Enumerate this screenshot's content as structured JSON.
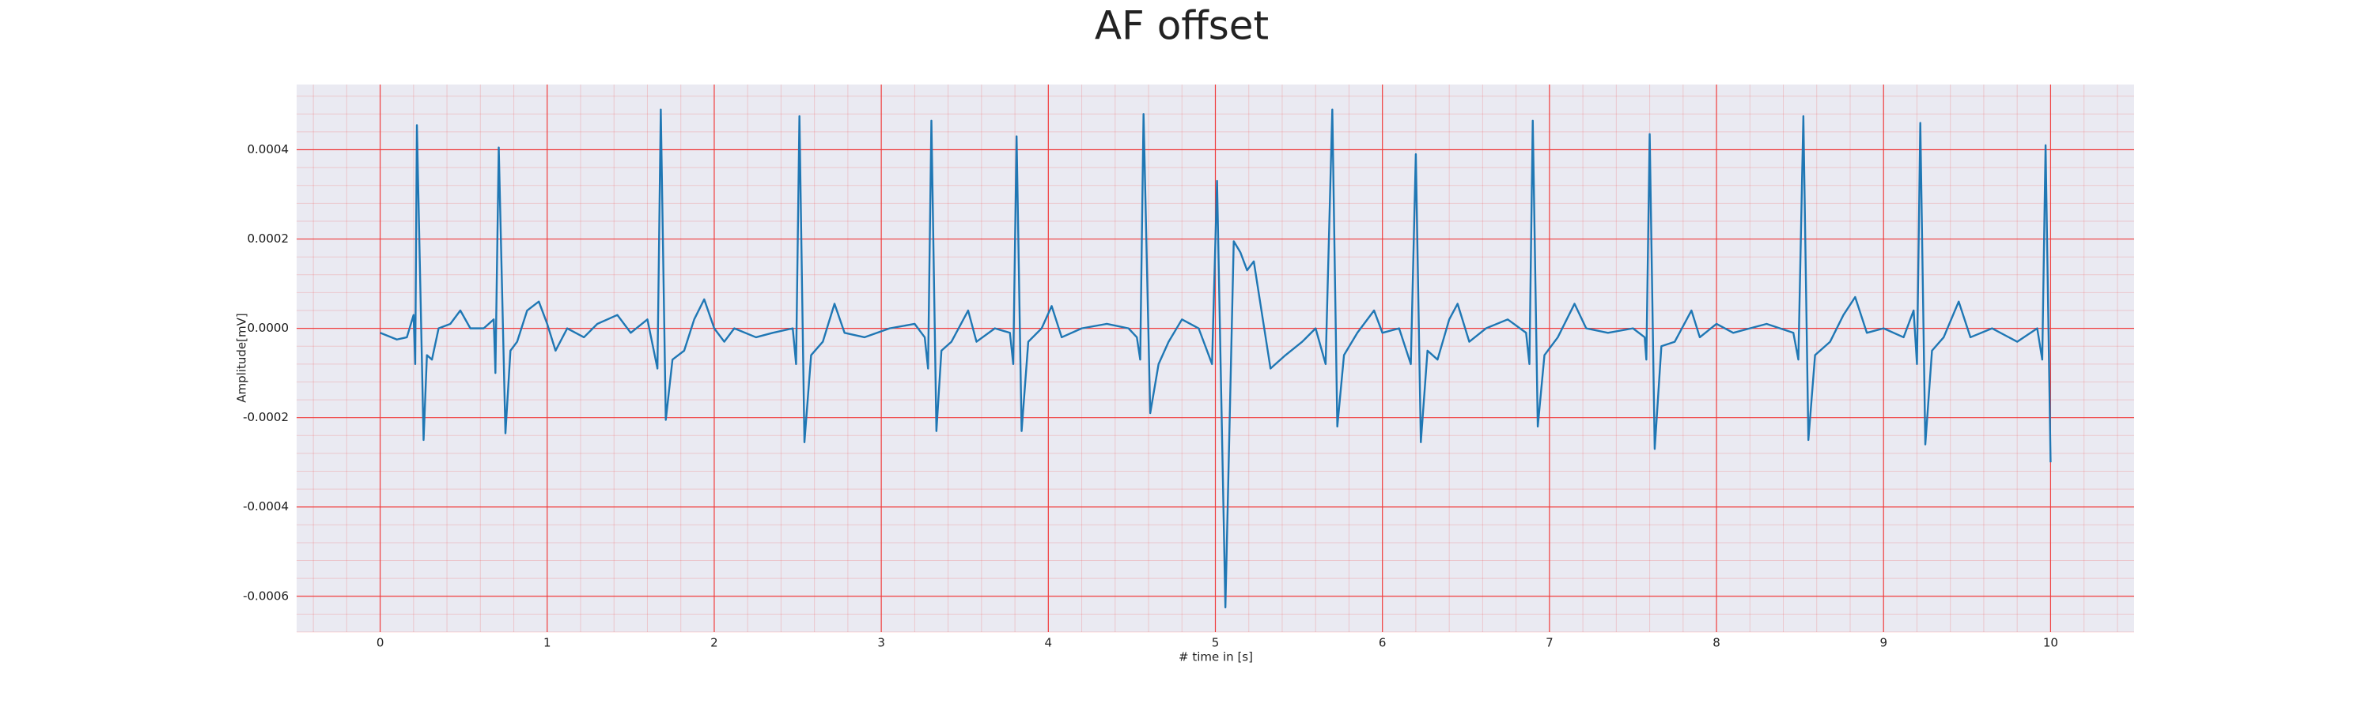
{
  "chart_data": {
    "type": "line",
    "title": "AF offset",
    "xlabel": "# time in [s]",
    "ylabel": "Amplitude[mV]",
    "xlim": [
      -0.5,
      10.5
    ],
    "xticks": [
      0,
      1,
      2,
      3,
      4,
      5,
      6,
      7,
      8,
      9,
      10
    ],
    "ylim": [
      -0.00068,
      0.000546
    ],
    "yticks": [
      -0.0006,
      -0.0004,
      -0.0002,
      {
        "value": 0,
        "label": "0.0000"
      },
      0.0002,
      0.0004
    ],
    "grid": true,
    "grid_color": "#f03c3c",
    "minor_grid": true,
    "background": "#eaeaf2",
    "series": [
      {
        "color": "#1f77b4",
        "x": [
          0,
          0.1,
          0.16,
          0.2,
          0.21,
          0.22,
          0.26,
          0.28,
          0.31,
          0.35,
          0.42,
          0.48,
          0.54,
          0.62,
          0.68,
          0.69,
          0.71,
          0.75,
          0.78,
          0.82,
          0.88,
          0.95,
          1.0,
          1.05,
          1.12,
          1.22,
          1.3,
          1.42,
          1.5,
          1.6,
          1.66,
          1.68,
          1.71,
          1.75,
          1.82,
          1.88,
          1.94,
          2.0,
          2.06,
          2.12,
          2.25,
          2.35,
          2.47,
          2.49,
          2.51,
          2.54,
          2.58,
          2.65,
          2.72,
          2.78,
          2.9,
          3.05,
          3.2,
          3.26,
          3.28,
          3.3,
          3.33,
          3.36,
          3.42,
          3.52,
          3.57,
          3.68,
          3.77,
          3.79,
          3.81,
          3.84,
          3.88,
          3.96,
          4.02,
          4.08,
          4.2,
          4.35,
          4.48,
          4.53,
          4.55,
          4.57,
          4.61,
          4.66,
          4.72,
          4.8,
          4.9,
          4.98,
          5.01,
          5.06,
          5.11,
          5.15,
          5.19,
          5.23,
          5.33,
          5.42,
          5.52,
          5.6,
          5.66,
          5.7,
          5.73,
          5.77,
          5.85,
          5.95,
          6.0,
          6.1,
          6.17,
          6.2,
          6.23,
          6.27,
          6.33,
          6.4,
          6.45,
          6.52,
          6.62,
          6.75,
          6.86,
          6.88,
          6.9,
          6.93,
          6.97,
          7.05,
          7.15,
          7.22,
          7.35,
          7.5,
          7.57,
          7.58,
          7.6,
          7.63,
          7.67,
          7.75,
          7.85,
          7.9,
          8.0,
          8.1,
          8.2,
          8.3,
          8.46,
          8.49,
          8.52,
          8.55,
          8.59,
          8.68,
          8.76,
          8.83,
          8.9,
          9.0,
          9.12,
          9.18,
          9.2,
          9.22,
          9.25,
          9.29,
          9.36,
          9.45,
          9.52,
          9.65,
          9.8,
          9.92,
          9.95,
          9.97,
          10.0
        ],
        "values": [
          -1e-05,
          -2.5e-05,
          -2e-05,
          3e-05,
          -8e-05,
          0.000455,
          -0.00025,
          -6e-05,
          -7e-05,
          0,
          1e-05,
          4e-05,
          0,
          0,
          2e-05,
          -0.0001,
          0.000405,
          -0.000235,
          -5e-05,
          -3e-05,
          4e-05,
          6e-05,
          1e-05,
          -5e-05,
          0,
          -2e-05,
          1e-05,
          3e-05,
          -1e-05,
          2e-05,
          -9e-05,
          0.00049,
          -0.000205,
          -7e-05,
          -5e-05,
          2e-05,
          6.5e-05,
          0,
          -3e-05,
          0,
          -2e-05,
          -1e-05,
          0,
          -8e-05,
          0.000475,
          -0.000255,
          -6e-05,
          -3e-05,
          5.5e-05,
          -1e-05,
          -2e-05,
          0,
          1e-05,
          -2e-05,
          -9e-05,
          0.000465,
          -0.00023,
          -5e-05,
          -3e-05,
          4e-05,
          -3e-05,
          0,
          -1e-05,
          -8e-05,
          0.00043,
          -0.00023,
          -3e-05,
          0,
          5e-05,
          -2e-05,
          0,
          1e-05,
          0,
          -2e-05,
          -7e-05,
          0.00048,
          -0.00019,
          -8e-05,
          -3e-05,
          2e-05,
          0,
          -8e-05,
          0.00033,
          -0.000625,
          0.000195,
          0.00017,
          0.00013,
          0.00015,
          -9e-05,
          -6e-05,
          -3e-05,
          0,
          -8e-05,
          0.00049,
          -0.00022,
          -6e-05,
          -1e-05,
          4e-05,
          -1e-05,
          0,
          -8e-05,
          0.00039,
          -0.000255,
          -5e-05,
          -7e-05,
          2e-05,
          5.5e-05,
          -3e-05,
          0,
          2e-05,
          -1e-05,
          -8e-05,
          0.000465,
          -0.00022,
          -6e-05,
          -2e-05,
          5.5e-05,
          0,
          -1e-05,
          0,
          -2e-05,
          -7e-05,
          0.000435,
          -0.00027,
          -4e-05,
          -3e-05,
          4e-05,
          -2e-05,
          1e-05,
          -1e-05,
          0,
          1e-05,
          -1e-05,
          -7e-05,
          0.000475,
          -0.00025,
          -6e-05,
          -3e-05,
          3e-05,
          7e-05,
          -1e-05,
          0,
          -2e-05,
          4e-05,
          -8e-05,
          0.00046,
          -0.00026,
          -5e-05,
          -2e-05,
          6e-05,
          -2e-05,
          0,
          -3e-05,
          0,
          -7e-05,
          0.00041,
          -0.0003
        ]
      }
    ]
  }
}
